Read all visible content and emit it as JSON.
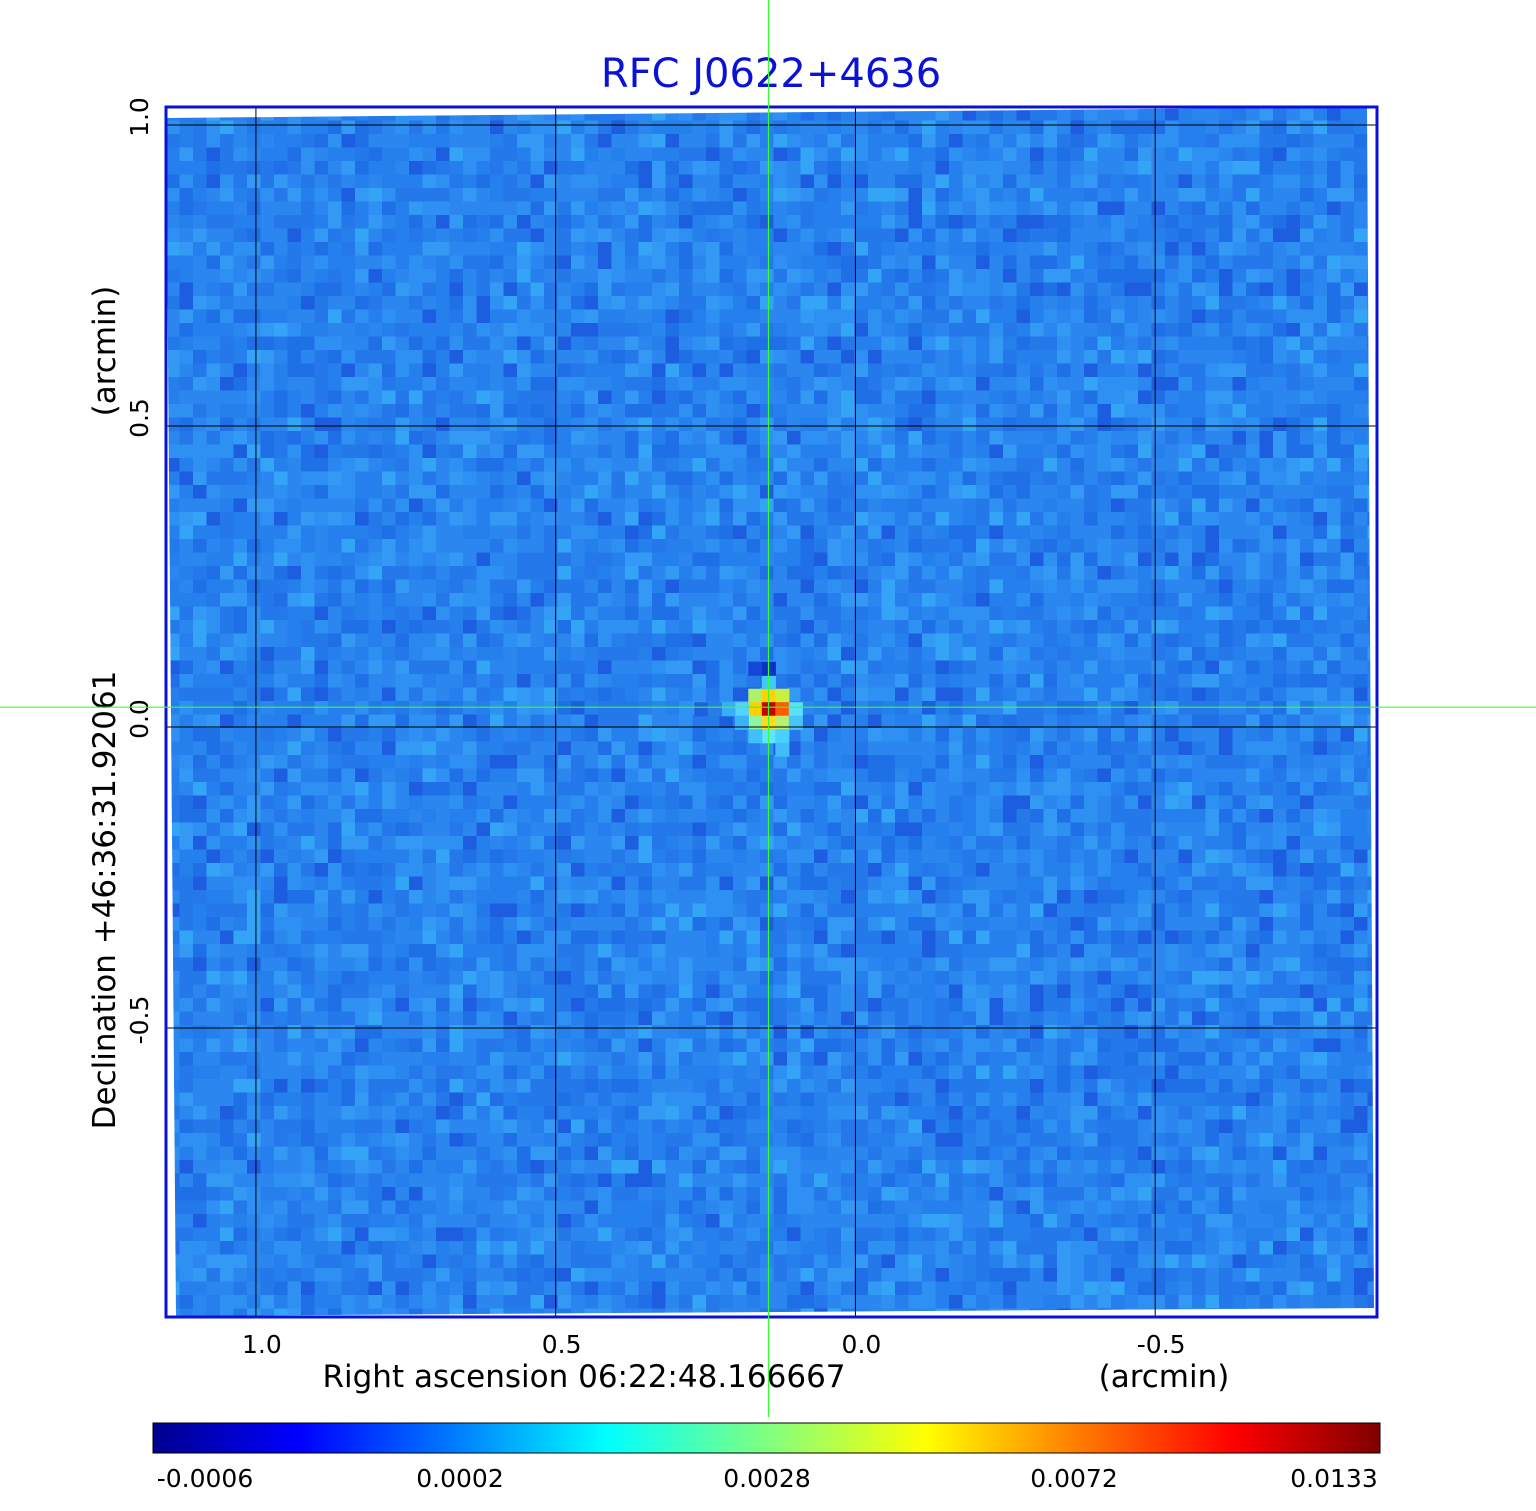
{
  "chart_data": {
    "type": "heatmap",
    "title": "RFC J0622+4636",
    "xlabel": "Right ascension  06:22:48.166667",
    "xunit": "(arcmin)",
    "ylabel": "Declination  +46:36:31.92061",
    "yunit": "(arcmin)",
    "xlim": [
      1.15,
      -0.87
    ],
    "ylim": [
      -0.98,
      1.03
    ],
    "x_ticks": [
      {
        "value": 1.0,
        "label": "1.0"
      },
      {
        "value": 0.5,
        "label": "0.5"
      },
      {
        "value": 0.0,
        "label": "0.0"
      },
      {
        "value": -0.5,
        "label": "-0.5"
      }
    ],
    "y_ticks": [
      {
        "value": 1.0,
        "label": "1.0"
      },
      {
        "value": 0.5,
        "label": "0.5"
      },
      {
        "value": 0.0,
        "label": "0.0"
      },
      {
        "value": -0.5,
        "label": "-0.5"
      }
    ],
    "grid": true,
    "crosshair": {
      "x": 0.145,
      "y": 0.033
    },
    "peak": {
      "x": 0.145,
      "y": 0.03,
      "value": 0.0133
    },
    "colorbar": {
      "orientation": "horizontal",
      "location": "bottom",
      "ticks": [
        {
          "value": -0.0006,
          "label": "-0.0006"
        },
        {
          "value": 0.0002,
          "label": "0.0002"
        },
        {
          "value": 0.0028,
          "label": "0.0028"
        },
        {
          "value": 0.0072,
          "label": "0.0072"
        },
        {
          "value": 0.0133,
          "label": "0.0133"
        }
      ],
      "colormap": [
        "#00008f",
        "#0000ff",
        "#0080ff",
        "#00ffff",
        "#80ff80",
        "#ffff00",
        "#ff8000",
        "#ff0000",
        "#800000"
      ]
    },
    "colors": {
      "title": "#0a12d6",
      "frame": "#0a12d6",
      "grid": "#000000",
      "crosshair": "#33ff33",
      "background_noise": "#2b8cf0"
    }
  }
}
